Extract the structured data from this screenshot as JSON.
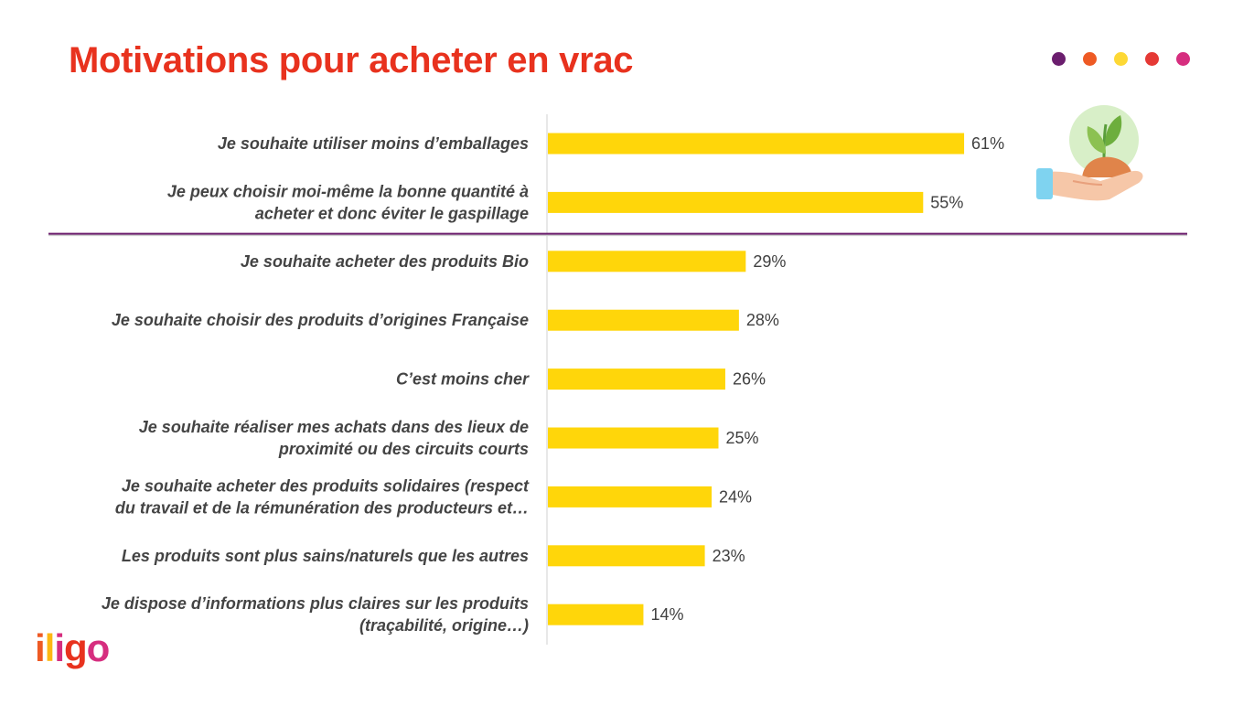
{
  "header": {
    "title": "Motivations pour acheter en vrac",
    "dot_colors": [
      "#6b1e6e",
      "#ee5a24",
      "#fdd835",
      "#e53935",
      "#d62e7f"
    ]
  },
  "colors": {
    "bar": "#ffd60a",
    "divider": "#6b1e6e",
    "axis": "#d0d0d0"
  },
  "icon": {
    "name": "hand-holding-seedling-icon"
  },
  "logo": {
    "letters": [
      {
        "char": "i",
        "color": "#ee5a24"
      },
      {
        "char": "l",
        "color": "#fdb813"
      },
      {
        "char": "i",
        "color": "#d62e7f"
      },
      {
        "char": "g",
        "color": "#e8321e"
      },
      {
        "char": "o",
        "color": "#d62e7f"
      }
    ]
  },
  "chart_data": {
    "type": "bar",
    "orientation": "horizontal",
    "title": "Motivations pour acheter en vrac",
    "xlabel": "",
    "ylabel": "",
    "xlim": [
      0,
      70
    ],
    "grid": false,
    "categories": [
      [
        "Je souhaite utiliser moins d’emballages"
      ],
      [
        "Je peux choisir moi-même la bonne quantité à",
        "acheter et donc éviter le gaspillage"
      ],
      [
        "Je souhaite acheter des produits Bio"
      ],
      [
        "Je souhaite choisir des produits d’origines Française"
      ],
      [
        "C’est moins cher"
      ],
      [
        "Je souhaite réaliser mes achats dans des lieux de",
        "proximité ou des circuits courts"
      ],
      [
        "Je souhaite acheter des produits solidaires (respect",
        "du travail et de la rémunération des producteurs et…"
      ],
      [
        "Les produits sont plus sains/naturels que les autres"
      ],
      [
        "Je dispose d’informations plus claires sur les produits",
        "(traçabilité, origine…)"
      ]
    ],
    "values": [
      61,
      55,
      29,
      28,
      26,
      25,
      24,
      23,
      14
    ],
    "value_labels": [
      "61%",
      "55%",
      "29%",
      "28%",
      "26%",
      "25%",
      "24%",
      "23%",
      "14%"
    ]
  }
}
